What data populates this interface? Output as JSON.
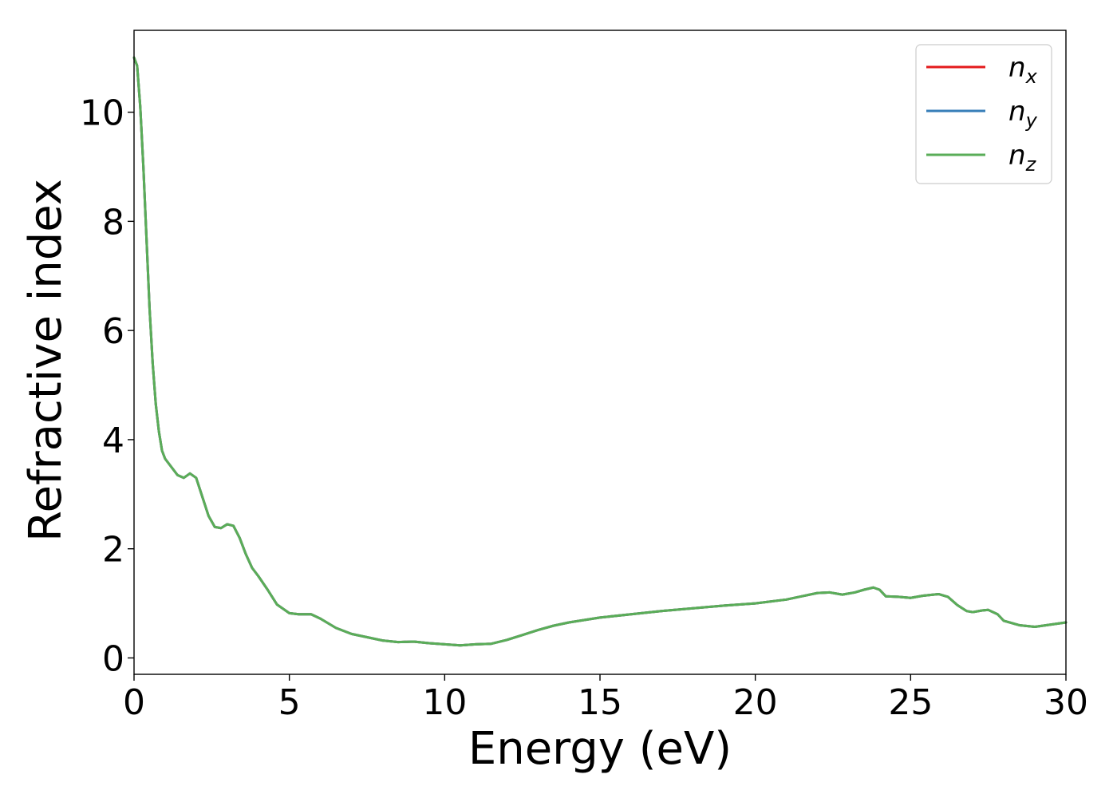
{
  "chart_data": {
    "type": "line",
    "title": "",
    "xlabel": "Energy (eV)",
    "ylabel": "Refractive index",
    "xlim": [
      0,
      30
    ],
    "ylim": [
      -0.3,
      11.5
    ],
    "xticks": [
      0,
      5,
      10,
      15,
      20,
      25,
      30
    ],
    "xtick_labels": [
      "0",
      "5",
      "10",
      "15",
      "20",
      "25",
      "30"
    ],
    "yticks": [
      0,
      2,
      4,
      6,
      8,
      10
    ],
    "ytick_labels": [
      "0",
      "2",
      "4",
      "6",
      "8",
      "10"
    ],
    "grid": false,
    "legend_position": "top-right",
    "x": [
      0.0,
      0.1,
      0.2,
      0.3,
      0.4,
      0.5,
      0.6,
      0.7,
      0.8,
      0.9,
      1.0,
      1.2,
      1.4,
      1.6,
      1.8,
      2.0,
      2.2,
      2.4,
      2.6,
      2.8,
      3.0,
      3.2,
      3.4,
      3.6,
      3.8,
      4.0,
      4.3,
      4.6,
      5.0,
      5.3,
      5.7,
      6.0,
      6.5,
      7.0,
      7.5,
      8.0,
      8.5,
      9.0,
      9.5,
      10.0,
      10.5,
      11.0,
      11.5,
      12.0,
      12.5,
      13.0,
      13.5,
      14.0,
      15.0,
      16.0,
      17.0,
      18.0,
      19.0,
      20.0,
      21.0,
      21.5,
      22.0,
      22.4,
      22.8,
      23.2,
      23.5,
      23.8,
      24.0,
      24.2,
      24.6,
      25.0,
      25.4,
      25.9,
      26.2,
      26.5,
      26.8,
      27.0,
      27.3,
      27.5,
      27.8,
      28.0,
      28.5,
      29.0,
      29.5,
      30.0
    ],
    "series": [
      {
        "name": "n_x",
        "color": "#e41a1c",
        "values": [
          11.0,
          10.85,
          10.1,
          9.0,
          7.7,
          6.4,
          5.4,
          4.65,
          4.15,
          3.8,
          3.65,
          3.5,
          3.35,
          3.3,
          3.38,
          3.3,
          2.95,
          2.6,
          2.4,
          2.38,
          2.45,
          2.42,
          2.2,
          1.9,
          1.65,
          1.5,
          1.25,
          0.98,
          0.82,
          0.8,
          0.8,
          0.72,
          0.55,
          0.44,
          0.38,
          0.32,
          0.29,
          0.3,
          0.27,
          0.25,
          0.23,
          0.25,
          0.26,
          0.33,
          0.42,
          0.51,
          0.59,
          0.65,
          0.74,
          0.8,
          0.86,
          0.91,
          0.96,
          1.0,
          1.07,
          1.13,
          1.19,
          1.2,
          1.16,
          1.2,
          1.25,
          1.29,
          1.25,
          1.13,
          1.12,
          1.1,
          1.14,
          1.17,
          1.12,
          0.97,
          0.86,
          0.84,
          0.87,
          0.88,
          0.8,
          0.68,
          0.6,
          0.57,
          0.61,
          0.65
        ]
      },
      {
        "name": "n_y",
        "color": "#377eb8",
        "values": [
          11.0,
          10.85,
          10.1,
          9.0,
          7.7,
          6.4,
          5.4,
          4.65,
          4.15,
          3.8,
          3.65,
          3.5,
          3.35,
          3.3,
          3.38,
          3.3,
          2.95,
          2.6,
          2.4,
          2.38,
          2.45,
          2.42,
          2.2,
          1.9,
          1.65,
          1.5,
          1.25,
          0.98,
          0.82,
          0.8,
          0.8,
          0.72,
          0.55,
          0.44,
          0.38,
          0.32,
          0.29,
          0.3,
          0.27,
          0.25,
          0.23,
          0.25,
          0.26,
          0.33,
          0.42,
          0.51,
          0.59,
          0.65,
          0.74,
          0.8,
          0.86,
          0.91,
          0.96,
          1.0,
          1.07,
          1.13,
          1.19,
          1.2,
          1.16,
          1.2,
          1.25,
          1.29,
          1.25,
          1.13,
          1.12,
          1.1,
          1.14,
          1.17,
          1.12,
          0.97,
          0.86,
          0.84,
          0.87,
          0.88,
          0.8,
          0.68,
          0.6,
          0.57,
          0.61,
          0.65
        ]
      },
      {
        "name": "n_z",
        "color": "#5aad58",
        "values": [
          11.0,
          10.85,
          10.1,
          9.0,
          7.7,
          6.4,
          5.4,
          4.65,
          4.15,
          3.8,
          3.65,
          3.5,
          3.35,
          3.3,
          3.38,
          3.3,
          2.95,
          2.6,
          2.4,
          2.38,
          2.45,
          2.42,
          2.2,
          1.9,
          1.65,
          1.5,
          1.25,
          0.98,
          0.82,
          0.8,
          0.8,
          0.72,
          0.55,
          0.44,
          0.38,
          0.32,
          0.29,
          0.3,
          0.27,
          0.25,
          0.23,
          0.25,
          0.26,
          0.33,
          0.42,
          0.51,
          0.59,
          0.65,
          0.74,
          0.8,
          0.86,
          0.91,
          0.96,
          1.0,
          1.07,
          1.13,
          1.19,
          1.2,
          1.16,
          1.2,
          1.25,
          1.29,
          1.25,
          1.13,
          1.12,
          1.1,
          1.14,
          1.17,
          1.12,
          0.97,
          0.86,
          0.84,
          0.87,
          0.88,
          0.8,
          0.68,
          0.6,
          0.57,
          0.61,
          0.65
        ]
      }
    ],
    "legend": [
      {
        "base": "n",
        "sub": "x"
      },
      {
        "base": "n",
        "sub": "y"
      },
      {
        "base": "n",
        "sub": "z"
      }
    ]
  }
}
